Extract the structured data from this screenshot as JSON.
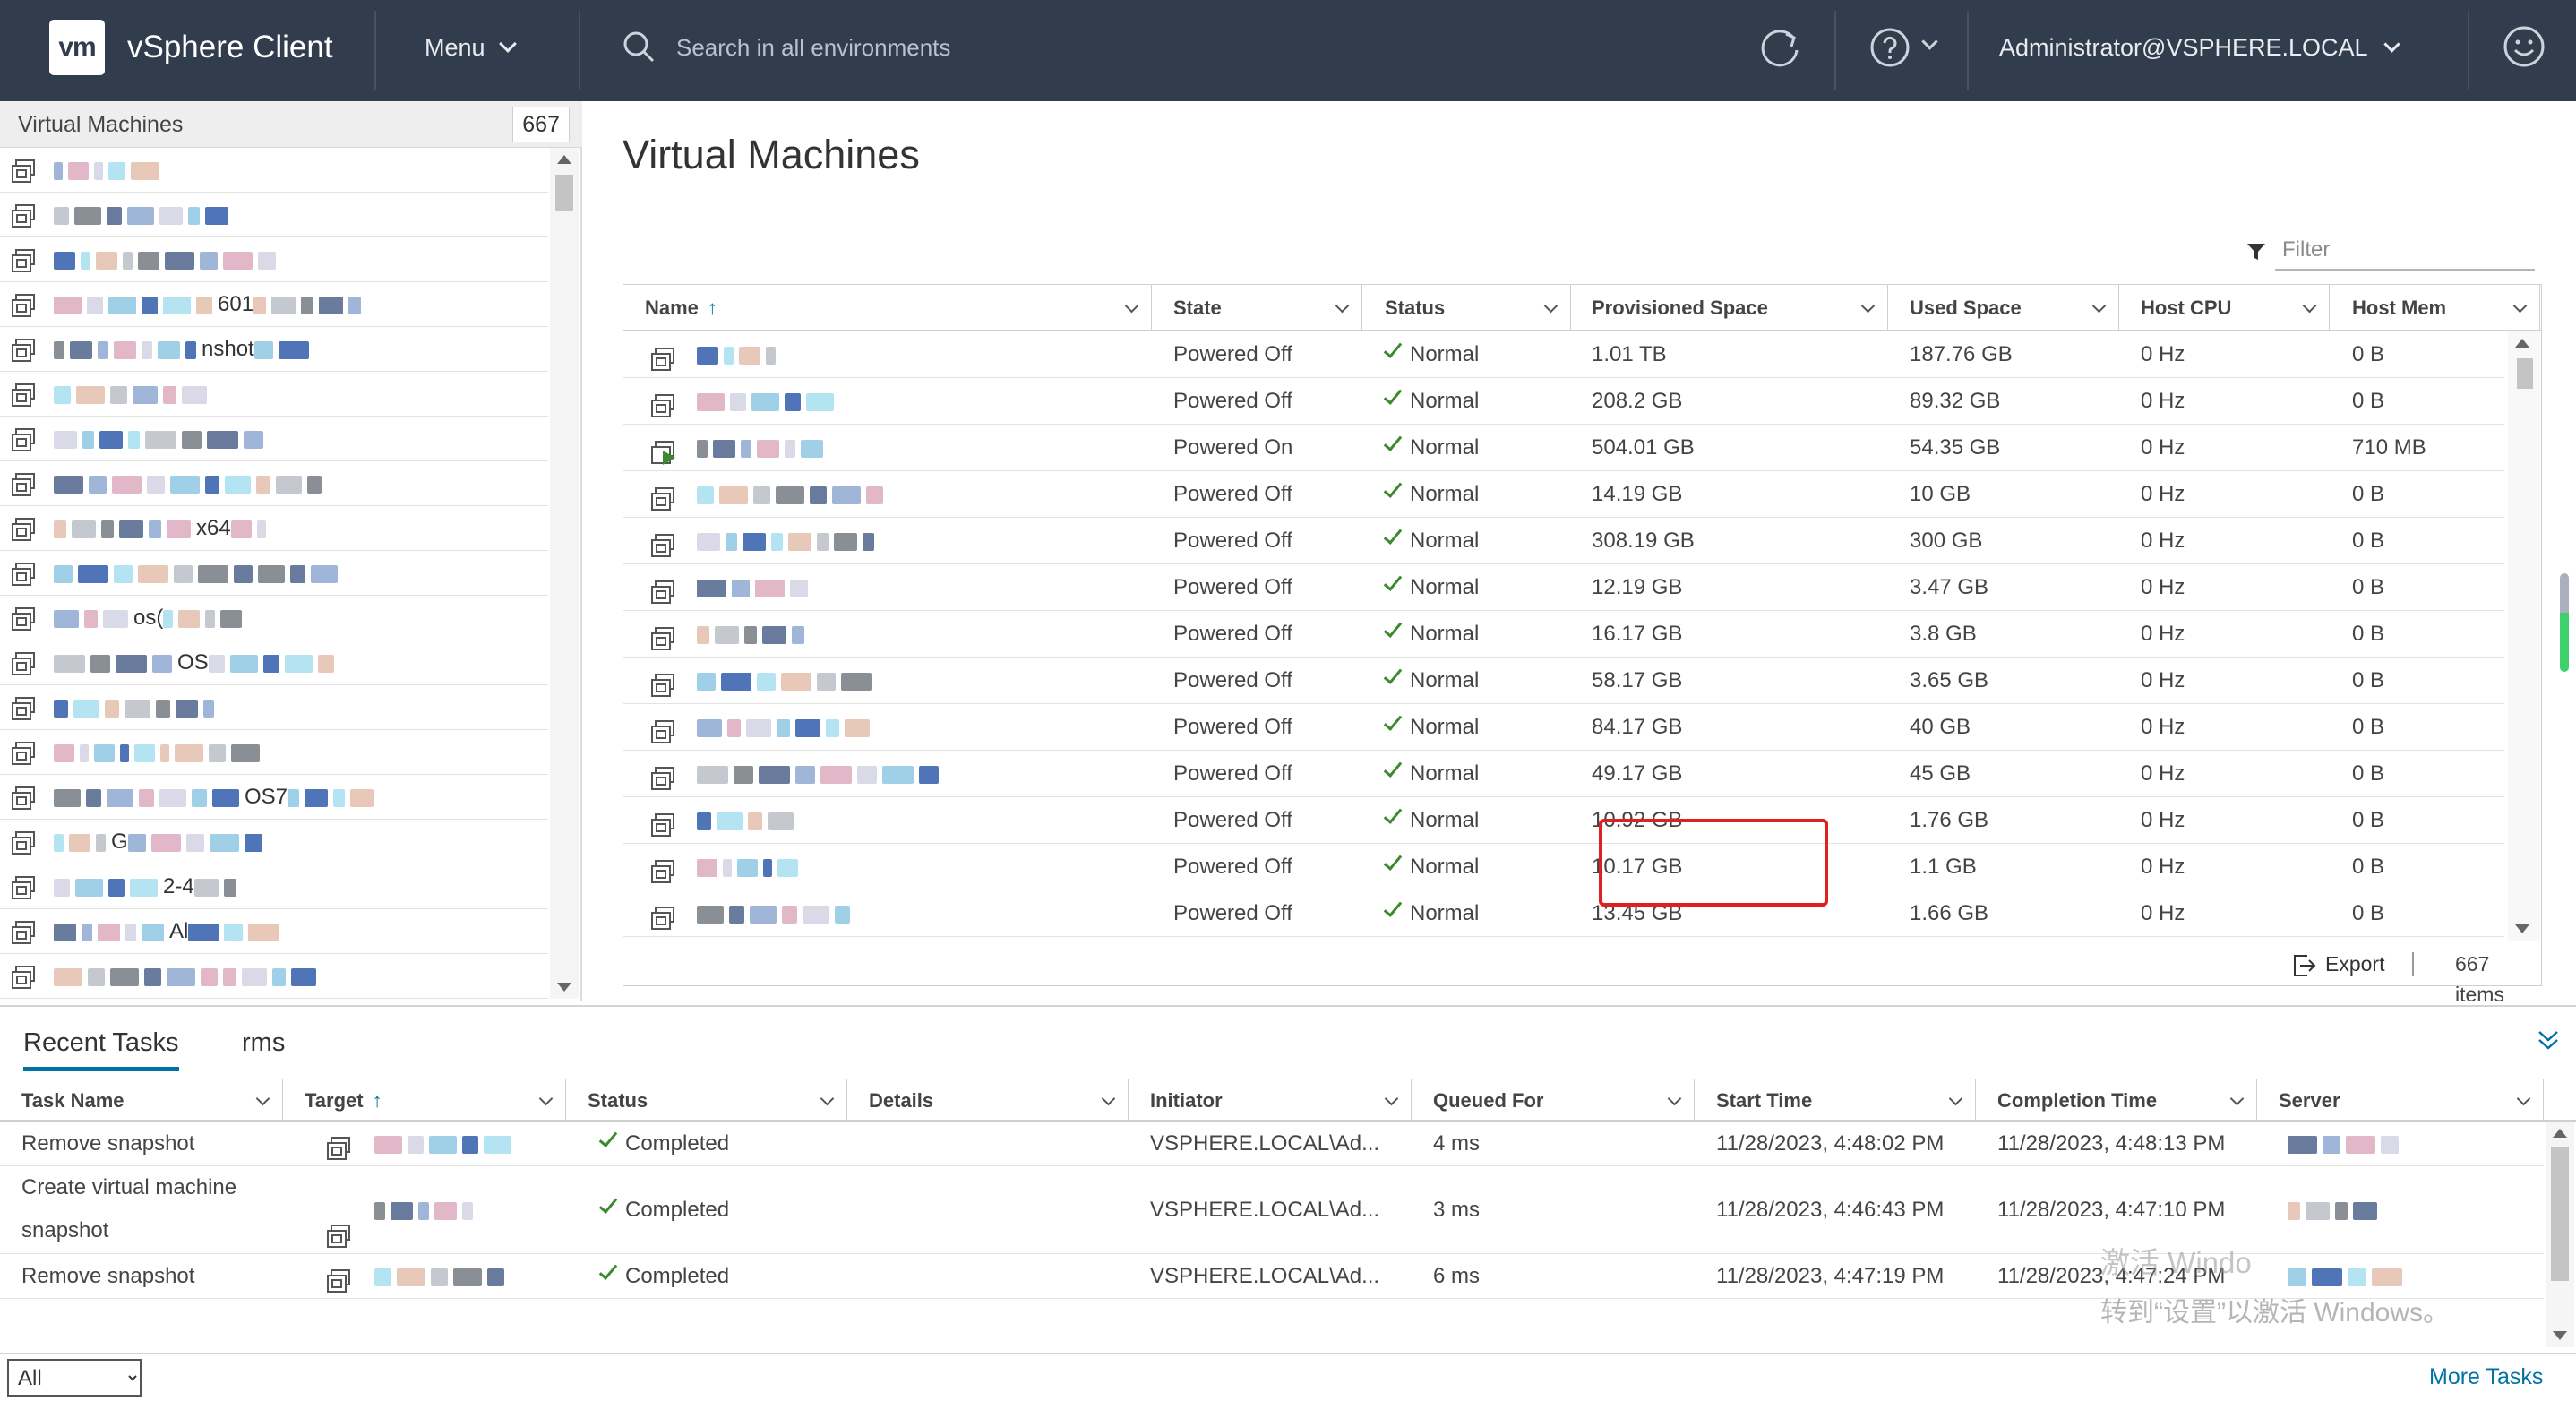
{
  "header": {
    "logo_text": "vm",
    "app_title": "vSphere Client",
    "menu_label": "Menu",
    "search_placeholder": "Search in all environments",
    "user_label": "Administrator@VSPHERE.LOCAL"
  },
  "sidebar": {
    "title": "Virtual Machines",
    "count": "667",
    "items": [
      {
        "label": ""
      },
      {
        "label": ""
      },
      {
        "label": ""
      },
      {
        "label": "601"
      },
      {
        "label": "nshot"
      },
      {
        "label": ""
      },
      {
        "label": ""
      },
      {
        "label": ""
      },
      {
        "label": "x64"
      },
      {
        "label": ""
      },
      {
        "label": "os("
      },
      {
        "label": "OS"
      },
      {
        "label": ""
      },
      {
        "label": ""
      },
      {
        "label": "OS7"
      },
      {
        "label": "G"
      },
      {
        "label": "2-4"
      },
      {
        "label": "Al"
      },
      {
        "label": ""
      }
    ]
  },
  "main": {
    "title": "Virtual Machines",
    "filter_placeholder": "Filter",
    "columns": [
      "Name",
      "State",
      "Status",
      "Provisioned Space",
      "Used Space",
      "Host CPU",
      "Host Mem"
    ],
    "rows": [
      {
        "state": "Powered Off",
        "status": "Normal",
        "prov": "1.01 TB",
        "used": "187.76 GB",
        "cpu": "0 Hz",
        "mem": "0 B",
        "on": false
      },
      {
        "state": "Powered Off",
        "status": "Normal",
        "prov": "208.2 GB",
        "used": "89.32 GB",
        "cpu": "0 Hz",
        "mem": "0 B",
        "on": false
      },
      {
        "state": "Powered On",
        "status": "Normal",
        "prov": "504.01 GB",
        "used": "54.35 GB",
        "cpu": "0 Hz",
        "mem": "710 MB",
        "on": true
      },
      {
        "state": "Powered Off",
        "status": "Normal",
        "prov": "14.19 GB",
        "used": "10 GB",
        "cpu": "0 Hz",
        "mem": "0 B",
        "on": false
      },
      {
        "state": "Powered Off",
        "status": "Normal",
        "prov": "308.19 GB",
        "used": "300 GB",
        "cpu": "0 Hz",
        "mem": "0 B",
        "on": false
      },
      {
        "state": "Powered Off",
        "status": "Normal",
        "prov": "12.19 GB",
        "used": "3.47 GB",
        "cpu": "0 Hz",
        "mem": "0 B",
        "on": false
      },
      {
        "state": "Powered Off",
        "status": "Normal",
        "prov": "16.17 GB",
        "used": "3.8 GB",
        "cpu": "0 Hz",
        "mem": "0 B",
        "on": false
      },
      {
        "state": "Powered Off",
        "status": "Normal",
        "prov": "58.17 GB",
        "used": "3.65 GB",
        "cpu": "0 Hz",
        "mem": "0 B",
        "on": false
      },
      {
        "state": "Powered Off",
        "status": "Normal",
        "prov": "84.17 GB",
        "used": "40 GB",
        "cpu": "0 Hz",
        "mem": "0 B",
        "on": false
      },
      {
        "state": "Powered Off",
        "status": "Normal",
        "prov": "49.17 GB",
        "used": "45 GB",
        "cpu": "0 Hz",
        "mem": "0 B",
        "on": false
      },
      {
        "state": "Powered Off",
        "status": "Normal",
        "prov": "10.92 GB",
        "used": "1.76 GB",
        "cpu": "0 Hz",
        "mem": "0 B",
        "on": false
      },
      {
        "state": "Powered Off",
        "status": "Normal",
        "prov": "10.17 GB",
        "used": "1.1 GB",
        "cpu": "0 Hz",
        "mem": "0 B",
        "on": false
      },
      {
        "state": "Powered Off",
        "status": "Normal",
        "prov": "13.45 GB",
        "used": "1.66 GB",
        "cpu": "0 Hz",
        "mem": "0 B",
        "on": false
      }
    ],
    "export_label": "Export",
    "items_count": "667 items"
  },
  "tasks": {
    "tab_recent": "Recent Tasks",
    "tab_alarms": "rms",
    "columns": [
      "Task Name",
      "Target",
      "Status",
      "Details",
      "Initiator",
      "Queued For",
      "Start Time",
      "Completion Time",
      "Server"
    ],
    "rows": [
      {
        "name": "Remove snapshot",
        "status": "Completed",
        "details": "",
        "initiator": "VSPHERE.LOCAL\\Ad...",
        "queued": "4 ms",
        "start": "11/28/2023, 4:48:02 PM",
        "end": "11/28/2023, 4:48:13 PM"
      },
      {
        "name": "Create virtual machine snapshot",
        "status": "Completed",
        "details": "",
        "initiator": "VSPHERE.LOCAL\\Ad...",
        "queued": "3 ms",
        "start": "11/28/2023, 4:46:43 PM",
        "end": "11/28/2023, 4:47:10 PM"
      },
      {
        "name": "Remove snapshot",
        "status": "Completed",
        "details": "",
        "initiator": "VSPHERE.LOCAL\\Ad...",
        "queued": "6 ms",
        "start": "11/28/2023, 4:47:19 PM",
        "end": "11/28/2023, 4:47:24 PM"
      }
    ],
    "filter_value": "All",
    "more_tasks": "More Tasks"
  },
  "watermark": {
    "line1": "激活 Windo",
    "line2": "转到“设置”以激活 Windows。"
  },
  "colors": {
    "header_bg": "#313c4d",
    "accent": "#0072a3",
    "check_green": "#3c8a2e",
    "highlight_red": "#e02020"
  },
  "icons": [
    "vm-icon",
    "search-icon",
    "refresh-icon",
    "help-icon",
    "smiley-icon",
    "filter-icon",
    "export-icon",
    "check-icon",
    "collapse-icon"
  ]
}
